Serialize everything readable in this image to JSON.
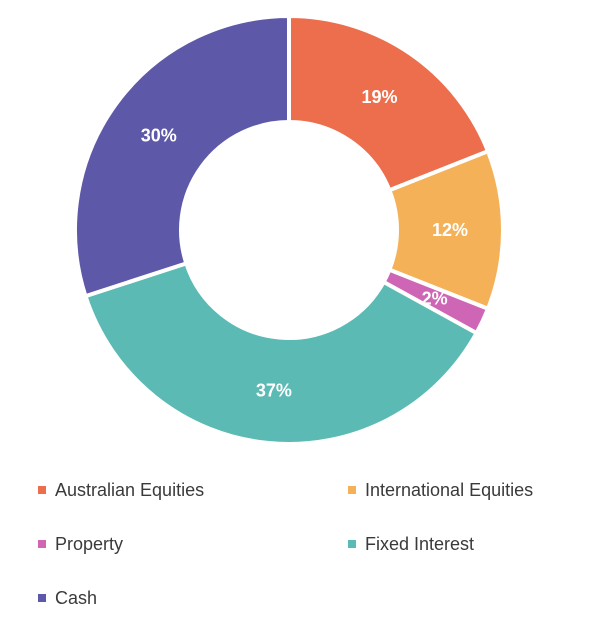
{
  "chart_data": {
    "type": "pie",
    "style": "donut",
    "title": "",
    "legend_position": "bottom",
    "slices": [
      {
        "label": "Australian Equities",
        "value": 19,
        "display": "19%",
        "color": "#EC6E4C"
      },
      {
        "label": "International Equities",
        "value": 12,
        "display": "12%",
        "color": "#F4B157"
      },
      {
        "label": "Property",
        "value": 2,
        "display": "2%",
        "color": "#CF66B5"
      },
      {
        "label": "Fixed Interest",
        "value": 37,
        "display": "37%",
        "color": "#5BBAB3"
      },
      {
        "label": "Cash",
        "value": 30,
        "display": "30%",
        "color": "#5E58A9"
      }
    ]
  }
}
